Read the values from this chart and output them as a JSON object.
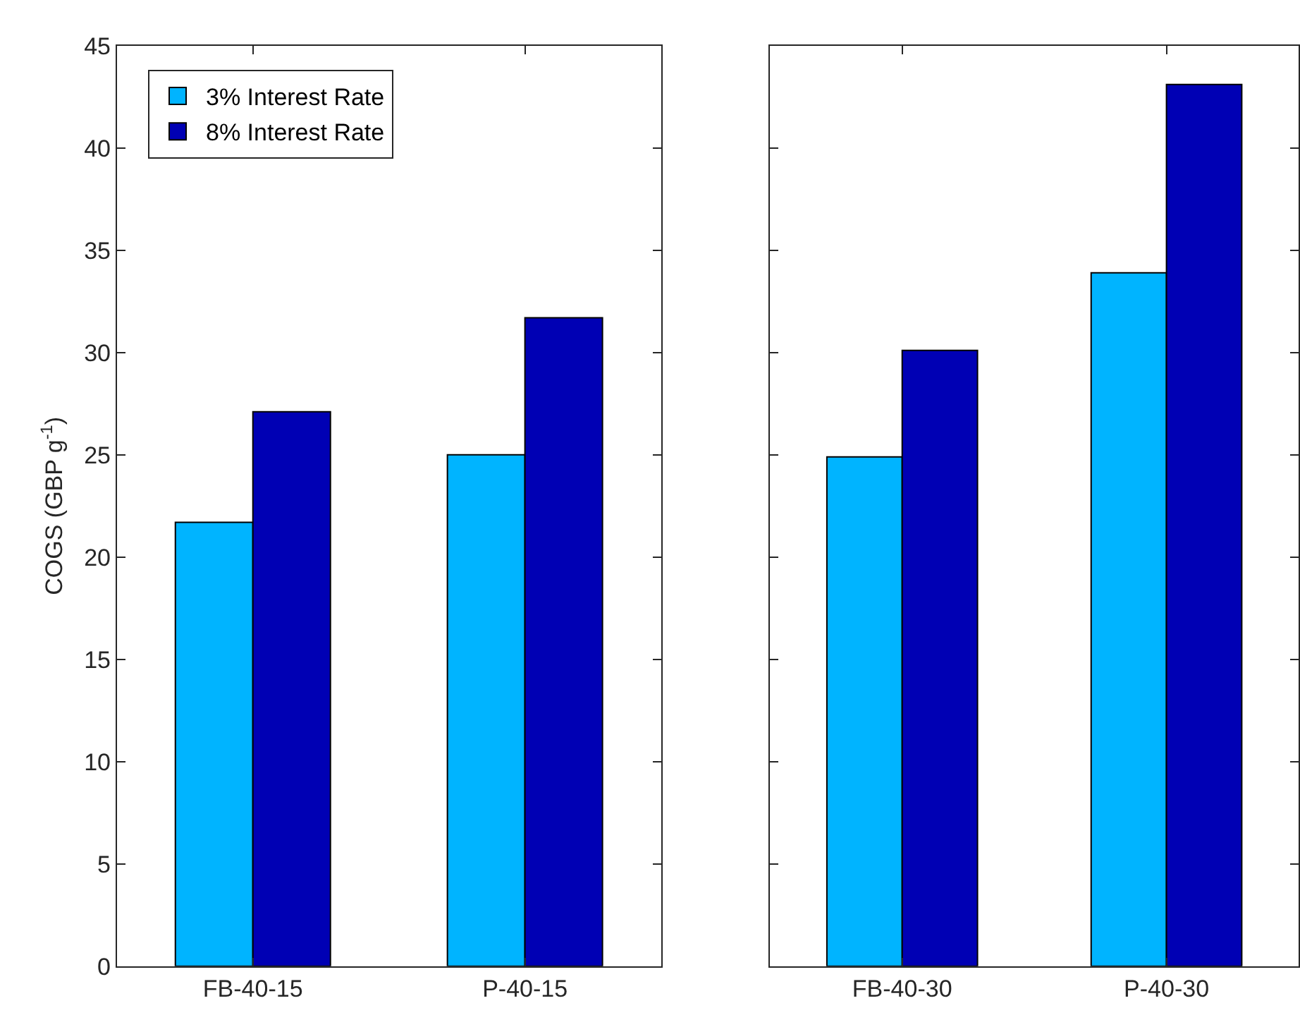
{
  "chart_data": [
    {
      "type": "bar",
      "ylabel": "COGS (GBP g$^{-1}$)",
      "categories": [
        "FB-40-15",
        "P-40-15"
      ],
      "ylim": [
        0,
        45
      ],
      "yticks": [
        0,
        5,
        10,
        15,
        20,
        25,
        30,
        35,
        40,
        45
      ],
      "legend": "top left",
      "series": [
        {
          "name": "3% Interest Rate",
          "color": "#00b4ff",
          "values": [
            21.7,
            25.0
          ]
        },
        {
          "name": "8% Interest Rate",
          "color": "#0000b4",
          "values": [
            27.1,
            31.7
          ]
        }
      ]
    },
    {
      "type": "bar",
      "categories": [
        "FB-40-30",
        "P-40-30"
      ],
      "ylim": [
        0,
        45
      ],
      "yticks": [
        0,
        5,
        10,
        15,
        20,
        25,
        30,
        35,
        40,
        45
      ],
      "tick_labels": "x",
      "series": [
        {
          "color": "#00b4ff",
          "values": [
            24.9,
            33.9
          ]
        },
        {
          "color": "#0000b4",
          "values": [
            30.1,
            43.1
          ]
        }
      ]
    }
  ]
}
